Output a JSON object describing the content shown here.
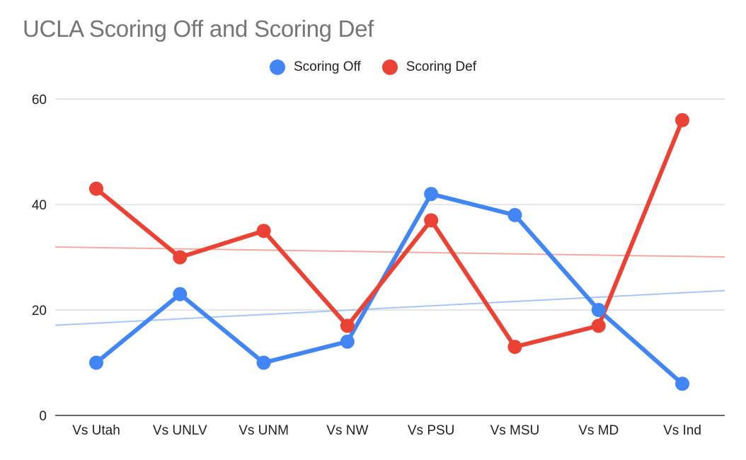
{
  "chart_data": {
    "type": "line",
    "title": "UCLA Scoring Off and Scoring Def",
    "xlabel": "",
    "ylabel": "",
    "categories": [
      "Vs Utah",
      "Vs UNLV",
      "Vs UNM",
      "Vs NW",
      "Vs PSU",
      "Vs MSU",
      "Vs MD",
      "Vs Ind"
    ],
    "ylim": [
      0,
      60
    ],
    "yticks": [
      "0",
      "20",
      "40",
      "60"
    ],
    "grid": true,
    "legend_position": "top",
    "series": [
      {
        "name": "Scoring Off",
        "color": "#4285f4",
        "trendline_color": "#a8c5f7",
        "values": [
          10,
          23,
          10,
          14,
          42,
          38,
          20,
          6
        ]
      },
      {
        "name": "Scoring Def",
        "color": "#ea4335",
        "trendline_color": "#f4a9a2",
        "values": [
          43,
          30,
          35,
          17,
          37,
          13,
          17,
          56
        ]
      }
    ]
  }
}
